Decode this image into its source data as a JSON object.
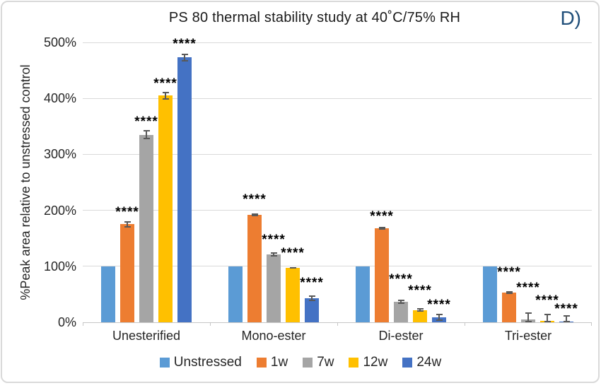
{
  "figure": {
    "panel_label": "D)",
    "panel_label_color": "#1F4E79",
    "background": "#FFFFFF",
    "border_color": "#D9D9D9"
  },
  "chart_data": {
    "type": "bar",
    "title": "PS 80 thermal stability study at 40˚C/75% RH",
    "xlabel": "",
    "ylabel": "%Peak area relative to unstressed control",
    "ylim": [
      0,
      500
    ],
    "ytick_labels": [
      "0%",
      "100%",
      "200%",
      "300%",
      "400%",
      "500%"
    ],
    "ytick_values": [
      0,
      100,
      200,
      300,
      400,
      500
    ],
    "grid": true,
    "legend_position": "bottom",
    "gridline_color": "#D9D9D9",
    "error_bar_color": "#595959",
    "significance_marker": "****",
    "categories": [
      "Unesterified",
      "Mono-ester",
      "Di-ester",
      "Tri-ester"
    ],
    "series": [
      {
        "name": "Unstressed",
        "color": "#5B9BD5",
        "values": [
          100,
          100,
          100,
          100
        ],
        "errors": [
          0,
          0,
          0,
          0
        ],
        "sig": [
          null,
          null,
          null,
          null
        ],
        "sig_y": [
          null,
          null,
          null,
          null
        ]
      },
      {
        "name": "1w",
        "color": "#ED7D31",
        "values": [
          175,
          192,
          168,
          53
        ],
        "errors": [
          6,
          2,
          2,
          2
        ],
        "sig": [
          "****",
          "****",
          "****",
          "****"
        ],
        "sig_y": [
          196,
          218,
          188,
          89
        ]
      },
      {
        "name": "7w",
        "color": "#A5A5A5",
        "values": [
          335,
          121,
          37,
          5
        ],
        "errors": [
          8,
          4,
          4,
          13
        ],
        "sig": [
          "****",
          "****",
          "****",
          "****"
        ],
        "sig_y": [
          357,
          146,
          76,
          61
        ]
      },
      {
        "name": "12w",
        "color": "#FFC000",
        "values": [
          405,
          97,
          22,
          2
        ],
        "errors": [
          7,
          1,
          3,
          13
        ],
        "sig": [
          "****",
          "****",
          "****",
          "****"
        ],
        "sig_y": [
          425,
          123,
          55,
          38
        ]
      },
      {
        "name": "24w",
        "color": "#4472C4",
        "values": [
          473,
          43,
          9,
          1
        ],
        "errors": [
          7,
          5,
          6,
          12
        ],
        "sig": [
          "****",
          "****",
          "****",
          "****"
        ],
        "sig_y": [
          496,
          70,
          30,
          23
        ]
      }
    ]
  }
}
